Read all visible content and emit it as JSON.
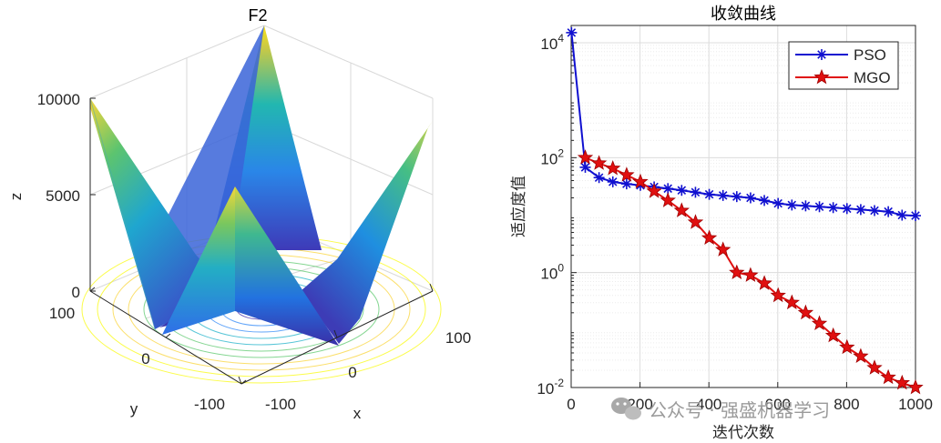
{
  "chart_data": [
    {
      "type": "surface",
      "title": "F2",
      "xlabel": "x",
      "ylabel": "y",
      "zlabel": "z",
      "x_ticks": [
        "-100",
        "0",
        "100"
      ],
      "y_ticks": [
        "-100",
        "0",
        "100"
      ],
      "z_ticks": [
        "0",
        "5000",
        "10000"
      ],
      "xlim": [
        -100,
        100
      ],
      "ylim": [
        -100,
        100
      ],
      "zlim": [
        0,
        10000
      ],
      "colormap": [
        "#3e26a8",
        "#2e87f7",
        "#1fb1c9",
        "#5cc86e",
        "#f9d43a",
        "#f9fb0e"
      ]
    },
    {
      "type": "line",
      "title": "收敛曲线",
      "xlabel": "迭代次数",
      "ylabel": "适应度值",
      "yscale": "log",
      "xlim": [
        0,
        1000
      ],
      "ylim": [
        0.01,
        20000
      ],
      "x_ticks": [
        "0",
        "200",
        "400",
        "600",
        "800",
        "1000"
      ],
      "y_ticks": [
        {
          "value": 0.01,
          "base": "10",
          "exp": "-2"
        },
        {
          "value": 1,
          "base": "10",
          "exp": "0"
        },
        {
          "value": 100,
          "base": "10",
          "exp": "2"
        },
        {
          "value": 10000,
          "base": "10",
          "exp": "4"
        }
      ],
      "grid": true,
      "legend_position": "top-right",
      "series": [
        {
          "name": "PSO",
          "color": "#1010d0",
          "marker": "asterisk",
          "x": [
            1,
            41,
            81,
            121,
            161,
            201,
            241,
            281,
            321,
            361,
            401,
            441,
            481,
            521,
            561,
            601,
            641,
            681,
            721,
            761,
            801,
            841,
            881,
            921,
            961,
            1000
          ],
          "y": [
            15000,
            68,
            45,
            38,
            35,
            33,
            31,
            29,
            27,
            25,
            23,
            22,
            21,
            20,
            18,
            16,
            15,
            14.5,
            14,
            13.5,
            13,
            12.5,
            12,
            11.5,
            10,
            9.8
          ]
        },
        {
          "name": "MGO",
          "color": "#e01010",
          "marker": "pentagram",
          "x": [
            41,
            81,
            121,
            161,
            201,
            241,
            281,
            321,
            361,
            401,
            441,
            481,
            521,
            561,
            601,
            641,
            681,
            721,
            761,
            801,
            841,
            881,
            921,
            961,
            1000
          ],
          "y": [
            100,
            80,
            65,
            50,
            38,
            26,
            18,
            12,
            7.5,
            4,
            2.5,
            1.0,
            0.9,
            0.65,
            0.4,
            0.3,
            0.2,
            0.13,
            0.08,
            0.05,
            0.035,
            0.022,
            0.015,
            0.012,
            0.01
          ]
        }
      ]
    }
  ],
  "watermark": {
    "text": "公众号 · 强盛机器学习"
  }
}
